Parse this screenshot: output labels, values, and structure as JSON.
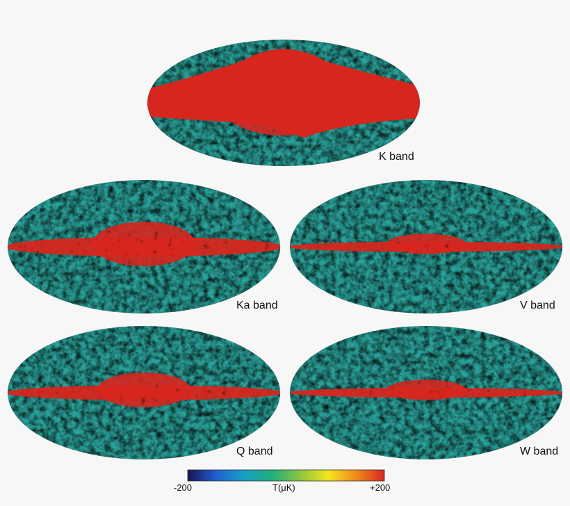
{
  "maps": [
    {
      "id": "k",
      "label": "K band",
      "galactic_plane_strength": "very strong"
    },
    {
      "id": "ka",
      "label": "Ka band",
      "galactic_plane_strength": "strong"
    },
    {
      "id": "v",
      "label": "V band",
      "galactic_plane_strength": "moderate"
    },
    {
      "id": "q",
      "label": "Q band",
      "galactic_plane_strength": "strong"
    },
    {
      "id": "w",
      "label": "W band",
      "galactic_plane_strength": "moderate"
    }
  ],
  "colorbar": {
    "min_label": "-200",
    "max_label": "+200",
    "title": "T(μK)",
    "min": -200,
    "max": 200,
    "colors": [
      "#1a1450",
      "#1e5fd0",
      "#16a0c8",
      "#1fae7a",
      "#8cc63f",
      "#f2e51c",
      "#f08a1c",
      "#d7261e"
    ]
  },
  "colors": {
    "background": "#f7f7f7",
    "galactic_plane": "#d7261e"
  }
}
